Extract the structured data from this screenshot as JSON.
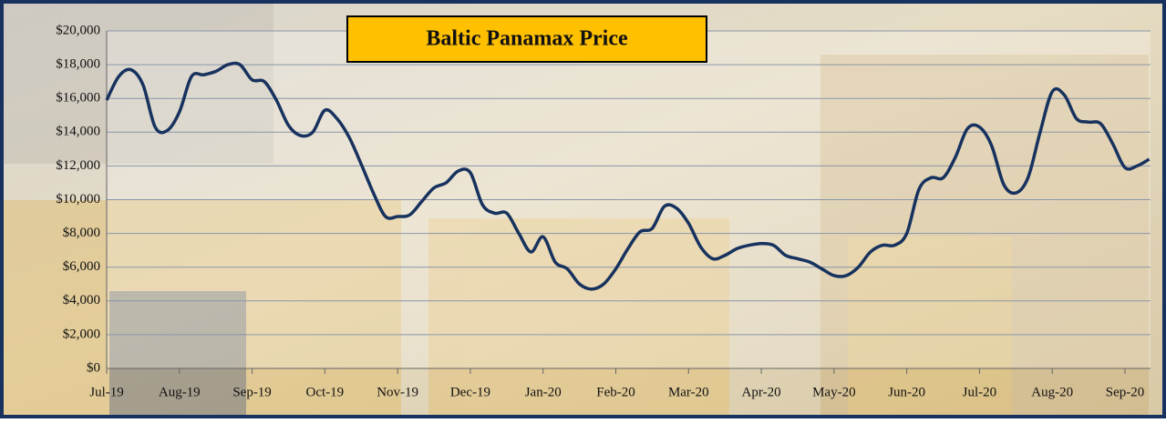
{
  "chart_data": {
    "type": "line",
    "title": "Baltic Panamax Price",
    "categories": [
      "Jul-19",
      null,
      null,
      null,
      null,
      null,
      "Aug-19",
      null,
      null,
      null,
      null,
      null,
      "Sep-19",
      null,
      null,
      null,
      null,
      null,
      "Oct-19",
      null,
      null,
      null,
      null,
      null,
      "Nov-19",
      null,
      null,
      null,
      null,
      null,
      "Dec-19",
      null,
      null,
      null,
      null,
      null,
      "Jan-20",
      null,
      null,
      null,
      null,
      null,
      "Feb-20",
      null,
      null,
      null,
      null,
      null,
      "Mar-20",
      null,
      null,
      null,
      null,
      null,
      "Apr-20",
      null,
      null,
      null,
      null,
      null,
      "May-20",
      null,
      null,
      null,
      null,
      null,
      "Jun-20",
      null,
      null,
      null,
      null,
      null,
      "Jul-20",
      null,
      null,
      null,
      null,
      null,
      "Aug-20",
      null,
      null,
      null,
      null,
      null,
      "Sep-20",
      null,
      null
    ],
    "values": [
      15900,
      17300,
      17700,
      16800,
      14300,
      14100,
      15200,
      17300,
      17400,
      17600,
      18000,
      18000,
      17100,
      17000,
      15900,
      14400,
      13800,
      14000,
      15300,
      14800,
      13700,
      12100,
      10400,
      9000,
      9000,
      9100,
      9900,
      10700,
      11000,
      11700,
      11600,
      9700,
      9200,
      9200,
      8000,
      6900,
      7800,
      6300,
      5900,
      5000,
      4700,
      5000,
      5900,
      7100,
      8100,
      8300,
      9600,
      9500,
      8600,
      7200,
      6500,
      6700,
      7100,
      7300,
      7400,
      7300,
      6700,
      6500,
      6300,
      5900,
      5500,
      5500,
      6000,
      6900,
      7300,
      7300,
      8000,
      10600,
      11300,
      11300,
      12500,
      14200,
      14300,
      13200,
      10900,
      10400,
      11300,
      14000,
      16400,
      16200,
      14800,
      14600,
      14500,
      13300,
      11900,
      12000,
      12400
    ],
    "color": "#17325e",
    "ylim": [
      0,
      20000
    ],
    "yticks": [
      {
        "value": 0,
        "label": "$0"
      },
      {
        "value": 2000,
        "label": "$2,000"
      },
      {
        "value": 4000,
        "label": "$4,000"
      },
      {
        "value": 6000,
        "label": "$6,000"
      },
      {
        "value": 8000,
        "label": "$8,000"
      },
      {
        "value": 10000,
        "label": "$10,000"
      },
      {
        "value": 12000,
        "label": "$12,000"
      },
      {
        "value": 14000,
        "label": "$14,000"
      },
      {
        "value": 16000,
        "label": "$16,000"
      },
      {
        "value": 18000,
        "label": "$18,000"
      },
      {
        "value": 20000,
        "label": "$20,000"
      }
    ],
    "grid": true
  }
}
